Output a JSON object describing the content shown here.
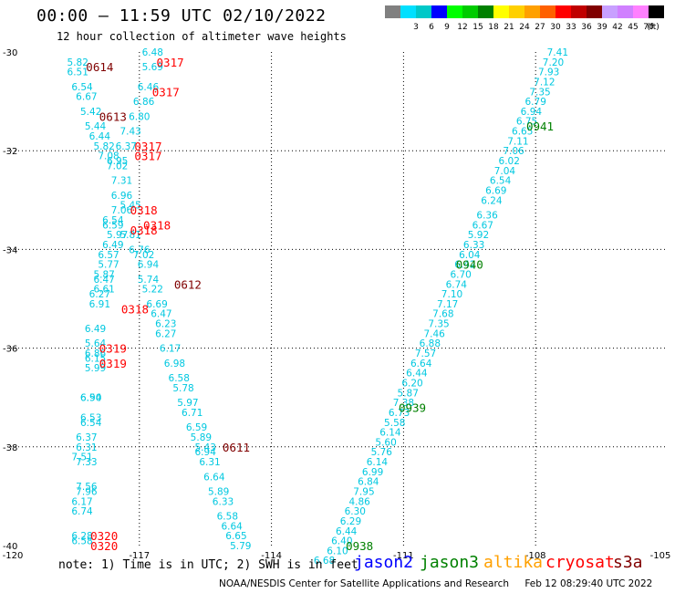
{
  "header": {
    "title": "00:00 – 11:59 UTC 02/10/2022",
    "subtitle": "12 hour collection of altimeter wave heights"
  },
  "colorbar": {
    "unit": "(ft)",
    "bins": [
      {
        "label": "",
        "color": "#808080"
      },
      {
        "label": "3",
        "color": "#00e0ff"
      },
      {
        "label": "6",
        "color": "#00c8c8"
      },
      {
        "label": "9",
        "color": "#0000ff"
      },
      {
        "label": "12",
        "color": "#00ff00"
      },
      {
        "label": "15",
        "color": "#00cc00"
      },
      {
        "label": "18",
        "color": "#008000"
      },
      {
        "label": "21",
        "color": "#ffff00"
      },
      {
        "label": "24",
        "color": "#ffd000"
      },
      {
        "label": "27",
        "color": "#ffa000"
      },
      {
        "label": "30",
        "color": "#ff6000"
      },
      {
        "label": "33",
        "color": "#ff0000"
      },
      {
        "label": "36",
        "color": "#c00000"
      },
      {
        "label": "39",
        "color": "#800000"
      },
      {
        "label": "42",
        "color": "#c8a0ff"
      },
      {
        "label": "45",
        "color": "#d080ff"
      },
      {
        "label": "70",
        "color": "#ff80ff"
      },
      {
        "label": "",
        "color": "#000000"
      }
    ]
  },
  "satellites": [
    {
      "name": "jason2",
      "color": "#0000ff"
    },
    {
      "name": "jason3",
      "color": "#008000"
    },
    {
      "name": "altika",
      "color": "#ffa000"
    },
    {
      "name": "cryosat",
      "color": "#ff0000"
    },
    {
      "name": "s3a",
      "color": "#800000"
    }
  ],
  "footer": {
    "note": "note:  1) Time is in UTC;  2) SWH is in feet",
    "agency": "NOAA/NESDIS Center for Satellite Applications and Research",
    "timestamp": "Feb 12 08:29:40 UTC 2022"
  },
  "chart_data": {
    "type": "scatter",
    "xlim": [
      -120,
      -105
    ],
    "ylim": [
      -40,
      -30
    ],
    "x_ticks": [
      "-120",
      "-117",
      "-114",
      "-111",
      "-108",
      "-105"
    ],
    "y_ticks": [
      "-30",
      "-32",
      "-34",
      "-36",
      "-38",
      "-40"
    ],
    "grid": true,
    "point_color": "#00c8e0",
    "swh_points": [
      {
        "v": "5.82",
        "x": -118.4,
        "y": -30.2
      },
      {
        "v": "6.48",
        "x": -116.7,
        "y": -30.0
      },
      {
        "v": "5.69",
        "x": -116.7,
        "y": -30.3
      },
      {
        "v": "6.51",
        "x": -118.4,
        "y": -30.4
      },
      {
        "v": "6.54",
        "x": -118.3,
        "y": -30.7
      },
      {
        "v": "6.46",
        "x": -116.8,
        "y": -30.7
      },
      {
        "v": "6.67",
        "x": -118.2,
        "y": -30.9
      },
      {
        "v": "6.86",
        "x": -116.9,
        "y": -31.0
      },
      {
        "v": "5.42",
        "x": -118.1,
        "y": -31.2
      },
      {
        "v": "6.80",
        "x": -117.0,
        "y": -31.3
      },
      {
        "v": "5.44",
        "x": -118.0,
        "y": -31.5
      },
      {
        "v": "7.43",
        "x": -117.2,
        "y": -31.6
      },
      {
        "v": "6.44",
        "x": -117.9,
        "y": -31.7
      },
      {
        "v": "5.82",
        "x": -117.8,
        "y": -31.9
      },
      {
        "v": "6.37",
        "x": -117.3,
        "y": -31.9
      },
      {
        "v": "7.08",
        "x": -117.7,
        "y": -32.1
      },
      {
        "v": "6.95",
        "x": -117.5,
        "y": -32.2
      },
      {
        "v": "7.02",
        "x": -117.5,
        "y": -32.3
      },
      {
        "v": "7.31",
        "x": -117.4,
        "y": -32.6
      },
      {
        "v": "6.96",
        "x": -117.4,
        "y": -32.9
      },
      {
        "v": "7.06",
        "x": -117.4,
        "y": -33.2
      },
      {
        "v": "5.45",
        "x": -117.2,
        "y": -33.1
      },
      {
        "v": "6.54",
        "x": -117.6,
        "y": -33.4
      },
      {
        "v": "6.59",
        "x": -117.6,
        "y": -33.5
      },
      {
        "v": "5.97",
        "x": -117.5,
        "y": -33.7
      },
      {
        "v": "5.81",
        "x": -117.2,
        "y": -33.7
      },
      {
        "v": "6.49",
        "x": -117.6,
        "y": -33.9
      },
      {
        "v": "6.76",
        "x": -117.0,
        "y": -34.0
      },
      {
        "v": "6.57",
        "x": -117.7,
        "y": -34.1
      },
      {
        "v": "7.02",
        "x": -116.9,
        "y": -34.1
      },
      {
        "v": "5.77",
        "x": -117.7,
        "y": -34.3
      },
      {
        "v": "6.94",
        "x": -116.8,
        "y": -34.3
      },
      {
        "v": "5.87",
        "x": -117.8,
        "y": -34.5
      },
      {
        "v": "5.74",
        "x": -116.8,
        "y": -34.6
      },
      {
        "v": "6.47",
        "x": -117.8,
        "y": -34.6
      },
      {
        "v": "6.61",
        "x": -117.8,
        "y": -34.8
      },
      {
        "v": "5.22",
        "x": -116.7,
        "y": -34.8
      },
      {
        "v": "6.27",
        "x": -117.9,
        "y": -34.9
      },
      {
        "v": "6.91",
        "x": -117.9,
        "y": -35.1
      },
      {
        "v": "6.69",
        "x": -116.6,
        "y": -35.1
      },
      {
        "v": "6.47",
        "x": -116.5,
        "y": -35.3
      },
      {
        "v": "6.23",
        "x": -116.4,
        "y": -35.5
      },
      {
        "v": "6.49",
        "x": -118.0,
        "y": -35.6
      },
      {
        "v": "6.27",
        "x": -116.4,
        "y": -35.7
      },
      {
        "v": "5.64",
        "x": -118.0,
        "y": -35.9
      },
      {
        "v": "6.17",
        "x": -116.3,
        "y": -36.0
      },
      {
        "v": "6.86",
        "x": -118.0,
        "y": -36.1
      },
      {
        "v": "6.15",
        "x": -118.0,
        "y": -36.2
      },
      {
        "v": "6.98",
        "x": -116.2,
        "y": -36.3
      },
      {
        "v": "5.99",
        "x": -118.0,
        "y": -36.4
      },
      {
        "v": "6.58",
        "x": -116.1,
        "y": -36.6
      },
      {
        "v": "5.78",
        "x": -116.0,
        "y": -36.8
      },
      {
        "v": "6.54",
        "x": -118.1,
        "y": -37.0
      },
      {
        "v": "5.97",
        "x": -115.9,
        "y": -37.1
      },
      {
        "v": "6.90",
        "x": -118.1,
        "y": -37.0
      },
      {
        "v": "6.71",
        "x": -115.8,
        "y": -37.3
      },
      {
        "v": "6.53",
        "x": -118.1,
        "y": -37.4
      },
      {
        "v": "6.54",
        "x": -118.1,
        "y": -37.5
      },
      {
        "v": "6.59",
        "x": -115.7,
        "y": -37.6
      },
      {
        "v": "5.89",
        "x": -115.6,
        "y": -37.8
      },
      {
        "v": "6.37",
        "x": -118.2,
        "y": -37.8
      },
      {
        "v": "6.31",
        "x": -118.2,
        "y": -38.0
      },
      {
        "v": "5.43",
        "x": -115.5,
        "y": -38.0
      },
      {
        "v": "6.94",
        "x": -115.5,
        "y": -38.1
      },
      {
        "v": "7.51",
        "x": -118.3,
        "y": -38.2
      },
      {
        "v": "7.33",
        "x": -118.2,
        "y": -38.3
      },
      {
        "v": "6.31",
        "x": -115.4,
        "y": -38.3
      },
      {
        "v": "6.64",
        "x": -115.3,
        "y": -38.6
      },
      {
        "v": "7.56",
        "x": -118.2,
        "y": -38.8
      },
      {
        "v": "7.96",
        "x": -118.2,
        "y": -38.9
      },
      {
        "v": "5.89",
        "x": -115.2,
        "y": -38.9
      },
      {
        "v": "6.17",
        "x": -118.3,
        "y": -39.1
      },
      {
        "v": "6.33",
        "x": -115.1,
        "y": -39.1
      },
      {
        "v": "6.74",
        "x": -118.3,
        "y": -39.3
      },
      {
        "v": "6.58",
        "x": -115.0,
        "y": -39.4
      },
      {
        "v": "6.64",
        "x": -114.9,
        "y": -39.6
      },
      {
        "v": "6.65",
        "x": -114.8,
        "y": -39.8
      },
      {
        "v": "6.28",
        "x": -118.3,
        "y": -39.8
      },
      {
        "v": "6.58",
        "x": -118.3,
        "y": -39.9
      },
      {
        "v": "5.79",
        "x": -114.7,
        "y": -40.0
      },
      {
        "v": "7.41",
        "x": -107.5,
        "y": -30.0
      },
      {
        "v": "7.20",
        "x": -107.6,
        "y": -30.2
      },
      {
        "v": "7.93",
        "x": -107.7,
        "y": -30.4
      },
      {
        "v": "7.12",
        "x": -107.8,
        "y": -30.6
      },
      {
        "v": "7.35",
        "x": -107.9,
        "y": -30.8
      },
      {
        "v": "6.79",
        "x": -108.0,
        "y": -31.0
      },
      {
        "v": "6.94",
        "x": -108.1,
        "y": -31.2
      },
      {
        "v": "6.75",
        "x": -108.2,
        "y": -31.4
      },
      {
        "v": "6.65",
        "x": -108.3,
        "y": -31.6
      },
      {
        "v": "7.11",
        "x": -108.4,
        "y": -31.8
      },
      {
        "v": "7.06",
        "x": -108.5,
        "y": -32.0
      },
      {
        "v": "6.02",
        "x": -108.6,
        "y": -32.2
      },
      {
        "v": "7.04",
        "x": -108.7,
        "y": -32.4
      },
      {
        "v": "6.54",
        "x": -108.8,
        "y": -32.6
      },
      {
        "v": "6.69",
        "x": -108.9,
        "y": -32.8
      },
      {
        "v": "6.24",
        "x": -109.0,
        "y": -33.0
      },
      {
        "v": "6.36",
        "x": -109.1,
        "y": -33.3
      },
      {
        "v": "6.67",
        "x": -109.2,
        "y": -33.5
      },
      {
        "v": "5.92",
        "x": -109.3,
        "y": -33.7
      },
      {
        "v": "6.33",
        "x": -109.4,
        "y": -33.9
      },
      {
        "v": "6.04",
        "x": -109.5,
        "y": -34.1
      },
      {
        "v": "6.42",
        "x": -109.6,
        "y": -34.3
      },
      {
        "v": "6.70",
        "x": -109.7,
        "y": -34.5
      },
      {
        "v": "6.74",
        "x": -109.8,
        "y": -34.7
      },
      {
        "v": "7.10",
        "x": -109.9,
        "y": -34.9
      },
      {
        "v": "7.17",
        "x": -110.0,
        "y": -35.1
      },
      {
        "v": "7.68",
        "x": -110.1,
        "y": -35.3
      },
      {
        "v": "7.35",
        "x": -110.2,
        "y": -35.5
      },
      {
        "v": "7.46",
        "x": -110.3,
        "y": -35.7
      },
      {
        "v": "6.88",
        "x": -110.4,
        "y": -35.9
      },
      {
        "v": "7.57",
        "x": -110.5,
        "y": -36.1
      },
      {
        "v": "6.64",
        "x": -110.6,
        "y": -36.3
      },
      {
        "v": "6.44",
        "x": -110.7,
        "y": -36.5
      },
      {
        "v": "6.20",
        "x": -110.8,
        "y": -36.7
      },
      {
        "v": "5.87",
        "x": -110.9,
        "y": -36.9
      },
      {
        "v": "7.38",
        "x": -111.0,
        "y": -37.1
      },
      {
        "v": "6.73",
        "x": -111.1,
        "y": -37.3
      },
      {
        "v": "5.58",
        "x": -111.2,
        "y": -37.5
      },
      {
        "v": "6.14",
        "x": -111.3,
        "y": -37.7
      },
      {
        "v": "5.60",
        "x": -111.4,
        "y": -37.9
      },
      {
        "v": "5.76",
        "x": -111.5,
        "y": -38.1
      },
      {
        "v": "6.14",
        "x": -111.6,
        "y": -38.3
      },
      {
        "v": "6.99",
        "x": -111.7,
        "y": -38.5
      },
      {
        "v": "6.84",
        "x": -111.8,
        "y": -38.7
      },
      {
        "v": "7.95",
        "x": -111.9,
        "y": -38.9
      },
      {
        "v": "4.86",
        "x": -112.0,
        "y": -39.1
      },
      {
        "v": "6.30",
        "x": -112.1,
        "y": -39.3
      },
      {
        "v": "6.29",
        "x": -112.2,
        "y": -39.5
      },
      {
        "v": "6.44",
        "x": -112.3,
        "y": -39.7
      },
      {
        "v": "6.40",
        "x": -112.4,
        "y": -39.9
      },
      {
        "v": "6.10",
        "x": -112.5,
        "y": -40.1
      },
      {
        "v": "6.68",
        "x": -112.8,
        "y": -40.3
      }
    ],
    "time_labels": [
      {
        "t": "0614",
        "sat": "s3a",
        "x": -117.9,
        "y": -30.3
      },
      {
        "t": "0317",
        "sat": "cryosat",
        "x": -116.3,
        "y": -30.2
      },
      {
        "t": "0317",
        "sat": "cryosat",
        "x": -116.4,
        "y": -30.8
      },
      {
        "t": "0613",
        "sat": "s3a",
        "x": -117.6,
        "y": -31.3
      },
      {
        "t": "0317",
        "sat": "cryosat",
        "x": -116.8,
        "y": -31.9
      },
      {
        "t": "0317",
        "sat": "cryosat",
        "x": -116.8,
        "y": -32.1
      },
      {
        "t": "0318",
        "sat": "cryosat",
        "x": -116.9,
        "y": -33.2
      },
      {
        "t": "0318",
        "sat": "cryosat",
        "x": -116.6,
        "y": -33.5
      },
      {
        "t": "0318",
        "sat": "cryosat",
        "x": -116.9,
        "y": -33.6
      },
      {
        "t": "0612",
        "sat": "s3a",
        "x": -115.9,
        "y": -34.7
      },
      {
        "t": "0318",
        "sat": "cryosat",
        "x": -117.1,
        "y": -35.2
      },
      {
        "t": "0319",
        "sat": "cryosat",
        "x": -117.6,
        "y": -36.0
      },
      {
        "t": "0319",
        "sat": "cryosat",
        "x": -117.6,
        "y": -36.3
      },
      {
        "t": "0611",
        "sat": "s3a",
        "x": -114.8,
        "y": -38.0
      },
      {
        "t": "0320",
        "sat": "cryosat",
        "x": -117.8,
        "y": -39.8
      },
      {
        "t": "0320",
        "sat": "cryosat",
        "x": -117.8,
        "y": -40.0
      },
      {
        "t": "0941",
        "sat": "jason3",
        "x": -107.9,
        "y": -31.5
      },
      {
        "t": "0940",
        "sat": "jason3",
        "x": -109.5,
        "y": -34.3
      },
      {
        "t": "0939",
        "sat": "jason3",
        "x": -110.8,
        "y": -37.2
      },
      {
        "t": "0938",
        "sat": "jason3",
        "x": -112.0,
        "y": -40.0
      }
    ]
  }
}
